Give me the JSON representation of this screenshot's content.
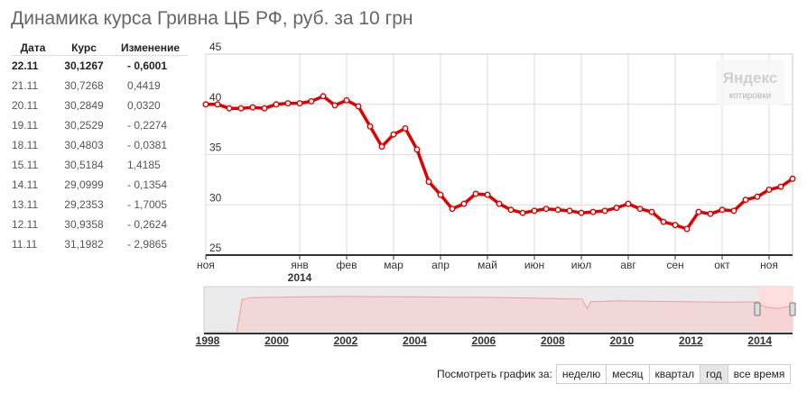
{
  "title": "Динамика курса Гривна ЦБ РФ, руб. за 10 грн",
  "table": {
    "headers": [
      "Дата",
      "Курс",
      "Изменение"
    ],
    "rows": [
      {
        "date": "22.11",
        "rate": "30,1267",
        "change": "- 0,6001"
      },
      {
        "date": "21.11",
        "rate": "30,7268",
        "change": "0,4419"
      },
      {
        "date": "20.11",
        "rate": "30,2849",
        "change": "0,0320"
      },
      {
        "date": "19.11",
        "rate": "30,2529",
        "change": "- 0,2274"
      },
      {
        "date": "18.11",
        "rate": "30,4803",
        "change": "- 0,0381"
      },
      {
        "date": "15.11",
        "rate": "30,5184",
        "change": "1,4185"
      },
      {
        "date": "14.11",
        "rate": "29,0999",
        "change": "- 0,1354"
      },
      {
        "date": "13.11",
        "rate": "29,2353",
        "change": "- 1,7005"
      },
      {
        "date": "12.11",
        "rate": "30,9358",
        "change": "- 0,2624"
      },
      {
        "date": "11.11",
        "rate": "31,1982",
        "change": "- 2,9865"
      }
    ]
  },
  "watermark": {
    "brand": "Яндекс",
    "sub": "котировки"
  },
  "chart_data": {
    "type": "line",
    "ylim": [
      25,
      45
    ],
    "yticks": [
      "25",
      "30",
      "35",
      "40",
      "45"
    ],
    "ytick_values": [
      25,
      30,
      35,
      40,
      45
    ],
    "grid": true,
    "series_color": "#e00000",
    "x_start_tick": 0,
    "x_end_tick": 12.5,
    "month_ticks": [
      {
        "label": "ноя",
        "x": 0
      },
      {
        "label": "янв",
        "x": 2
      },
      {
        "label": "фев",
        "x": 3
      },
      {
        "label": "мар",
        "x": 4
      },
      {
        "label": "апр",
        "x": 5
      },
      {
        "label": "май",
        "x": 6
      },
      {
        "label": "июн",
        "x": 7
      },
      {
        "label": "июл",
        "x": 8
      },
      {
        "label": "авг",
        "x": 9
      },
      {
        "label": "сен",
        "x": 10
      },
      {
        "label": "окт",
        "x": 11
      },
      {
        "label": "ноя",
        "x": 12
      }
    ],
    "year_label": {
      "label": "2014",
      "x": 2
    },
    "x": [
      0,
      0.25,
      0.5,
      0.75,
      1,
      1.25,
      1.5,
      1.75,
      2,
      2.25,
      2.5,
      2.75,
      3,
      3.25,
      3.5,
      3.75,
      4,
      4.25,
      4.5,
      4.75,
      5,
      5.25,
      5.5,
      5.75,
      6,
      6.25,
      6.5,
      6.75,
      7,
      7.25,
      7.5,
      7.75,
      8,
      8.25,
      8.5,
      8.75,
      9,
      9.25,
      9.5,
      9.75,
      10,
      10.25,
      10.5,
      10.75,
      11,
      11.25,
      11.5,
      11.75,
      12,
      12.25,
      12.5
    ],
    "values": [
      40.0,
      40.0,
      39.6,
      39.6,
      39.7,
      39.6,
      40.0,
      40.1,
      40.1,
      40.3,
      40.8,
      39.9,
      40.4,
      39.8,
      37.8,
      35.8,
      37.0,
      37.6,
      35.5,
      32.3,
      31.0,
      29.6,
      30.1,
      31.1,
      31.0,
      30.1,
      29.5,
      29.2,
      29.4,
      29.6,
      29.5,
      29.4,
      29.2,
      29.3,
      29.4,
      29.7,
      30.1,
      29.6,
      29.3,
      28.3,
      28.0,
      27.6,
      29.3,
      29.1,
      29.5,
      29.4,
      30.5,
      30.8,
      31.5,
      31.8,
      32.6
    ],
    "overview": {
      "years": [
        "1998",
        "2000",
        "2002",
        "2004",
        "2006",
        "2008",
        "2010",
        "2012",
        "2014"
      ],
      "year_values": [
        1998,
        2000,
        2002,
        2004,
        2006,
        2008,
        2010,
        2012,
        2014
      ],
      "x_range": [
        1998,
        2015
      ]
    }
  },
  "footer": {
    "label": "Посмотреть график за:",
    "buttons": [
      "неделю",
      "месяц",
      "квартал",
      "год",
      "все время"
    ],
    "active": "год"
  }
}
